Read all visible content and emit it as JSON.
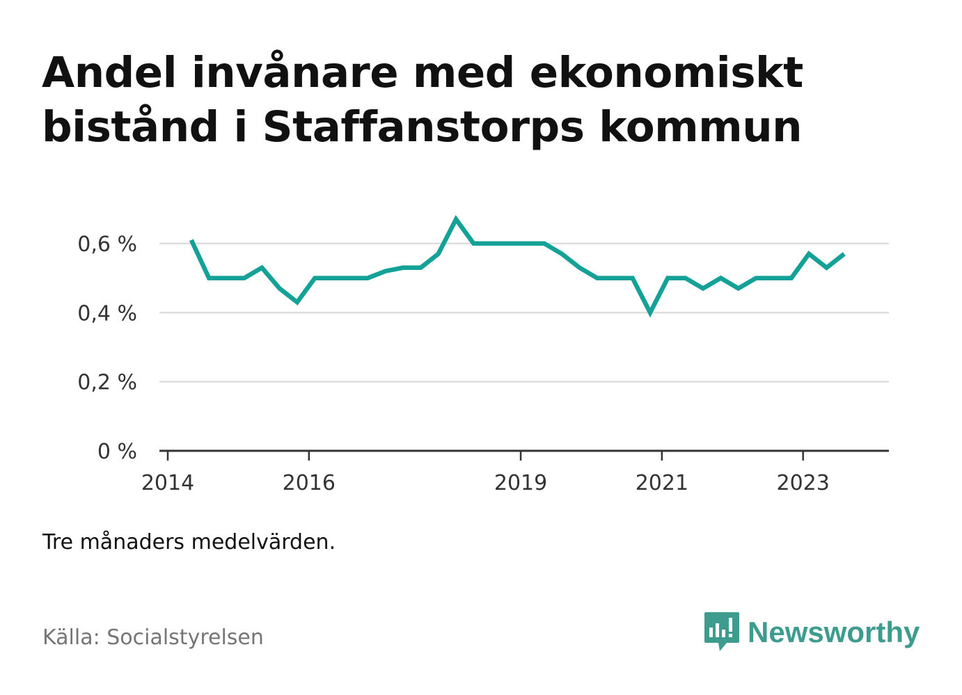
{
  "title": "Andel invånare med ekonomiskt bistånd i Staffanstorps kommun",
  "note": "Tre månaders medelvärden.",
  "source": "Källa: Socialstyrelsen",
  "brand": {
    "name": "Newsworthy",
    "icon": "newsworthy-logo-icon",
    "color": "#3d9c8e"
  },
  "chart_data": {
    "type": "line",
    "x_ticks": [
      "2014",
      "2016",
      "2019",
      "2021",
      "2023"
    ],
    "y_ticks": [
      "0 %",
      "0,2 %",
      "0,4 %",
      "0,6 %"
    ],
    "ylim": [
      0,
      0.7
    ],
    "xlim": [
      "2014-01",
      "2024-03"
    ],
    "grid": true,
    "line_color": "#13a198",
    "series": [
      {
        "x": [
          "2014-05",
          "2014-08",
          "2014-11",
          "2015-02",
          "2015-05",
          "2015-08",
          "2015-11",
          "2016-02",
          "2016-05",
          "2016-08",
          "2016-11",
          "2017-02",
          "2017-05",
          "2017-08",
          "2017-11",
          "2018-02",
          "2018-05",
          "2018-08",
          "2018-11",
          "2019-02",
          "2019-05",
          "2019-08",
          "2019-11",
          "2020-02",
          "2020-05",
          "2020-08",
          "2020-11",
          "2021-02",
          "2021-05",
          "2021-08",
          "2021-11",
          "2022-02",
          "2022-05",
          "2022-08",
          "2022-11",
          "2023-02",
          "2023-05",
          "2023-08"
        ],
        "values": [
          0.61,
          0.5,
          0.5,
          0.5,
          0.53,
          0.47,
          0.43,
          0.5,
          0.5,
          0.5,
          0.5,
          0.52,
          0.53,
          0.53,
          0.57,
          0.67,
          0.6,
          0.6,
          0.6,
          0.6,
          0.6,
          0.57,
          0.53,
          0.5,
          0.5,
          0.5,
          0.4,
          0.5,
          0.5,
          0.47,
          0.5,
          0.47,
          0.5,
          0.5,
          0.5,
          0.57,
          0.53,
          0.57
        ]
      }
    ]
  }
}
